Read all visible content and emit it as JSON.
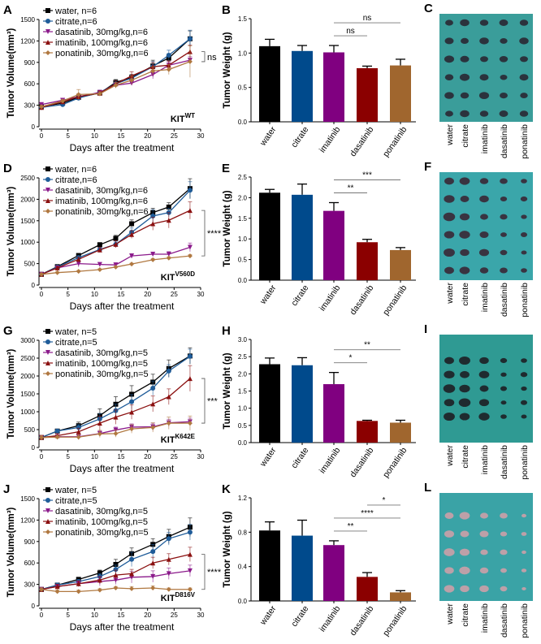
{
  "series_styles": {
    "water": {
      "color": "#000000",
      "marker": "square"
    },
    "citrate": {
      "color": "#1f5c99",
      "marker": "circle"
    },
    "dasatinib": {
      "color": "#8b1a8b",
      "marker": "triangle-down"
    },
    "imatinib": {
      "color": "#8b1010",
      "marker": "triangle-up"
    },
    "ponatinib": {
      "color": "#b07840",
      "marker": "diamond"
    }
  },
  "bar_colors": {
    "water": "#000000",
    "citrate": "#004a8c",
    "imatinib": "#800080",
    "dasatinib": "#8b0000",
    "ponatinib": "#a0662e"
  },
  "chart_data": [
    {
      "panel": "A",
      "type": "line",
      "xlabel": "Days after the treatment",
      "ylabel": "Tumor Volume(mm³)",
      "genotype": "KIT",
      "genotype_sup": "WT",
      "xlim": [
        0,
        30
      ],
      "ylim": [
        0,
        1500
      ],
      "xticks": [
        0,
        5,
        10,
        15,
        20,
        25,
        30
      ],
      "yticks": [
        0,
        300,
        600,
        900,
        1200,
        1500
      ],
      "legend": "top-left",
      "x": [
        0,
        4,
        7,
        11,
        14,
        17,
        21,
        24,
        28
      ],
      "series": [
        {
          "key": "water",
          "name": "water, n=6",
          "values": [
            280,
            330,
            410,
            470,
            620,
            690,
            850,
            960,
            1230
          ],
          "err": [
            20,
            20,
            30,
            30,
            40,
            40,
            80,
            60,
            110
          ]
        },
        {
          "key": "citrate",
          "name": "citrate,n=6",
          "values": [
            270,
            310,
            400,
            480,
            600,
            680,
            840,
            1000,
            1230
          ],
          "err": [
            20,
            20,
            30,
            30,
            40,
            40,
            70,
            70,
            120
          ]
        },
        {
          "key": "dasatinib",
          "name": "dasatinib, 30mg/kg,n=6",
          "values": [
            310,
            370,
            420,
            480,
            580,
            610,
            730,
            860,
            930
          ],
          "err": [
            20,
            20,
            30,
            30,
            30,
            30,
            60,
            50,
            50
          ]
        },
        {
          "key": "imatinib",
          "name": "imatinib, 100mg/kg,n=6",
          "values": [
            270,
            350,
            420,
            470,
            600,
            710,
            840,
            860,
            1050
          ],
          "err": [
            20,
            20,
            40,
            30,
            40,
            60,
            60,
            60,
            90
          ]
        },
        {
          "key": "ponatinib",
          "name": "ponatinib, 30mg/kg,n=6",
          "values": [
            280,
            360,
            450,
            460,
            580,
            650,
            780,
            800,
            910
          ],
          "err": [
            20,
            20,
            70,
            30,
            40,
            60,
            60,
            70,
            220
          ]
        }
      ],
      "significance": {
        "label": "ns",
        "groups": [
          "imatinib",
          "dasatinib",
          "ponatinib"
        ]
      }
    },
    {
      "panel": "B",
      "type": "bar",
      "ylabel": "Tumor Weight (g)",
      "ylim": [
        0,
        1.5
      ],
      "yticks": [
        "0.0",
        "0.5",
        "1.0",
        "1.5"
      ],
      "categories": [
        "water",
        "citrate",
        "imatinib",
        "dasatinib",
        "ponatinib"
      ],
      "values": [
        1.1,
        1.03,
        1.01,
        0.78,
        0.82
      ],
      "err": [
        0.1,
        0.08,
        0.1,
        0.03,
        0.09
      ],
      "comparisons": [
        {
          "from": "imatinib",
          "to": "dasatinib",
          "label": "ns"
        },
        {
          "from": "imatinib",
          "to": "ponatinib",
          "label": "ns"
        }
      ]
    },
    {
      "panel": "D",
      "type": "line",
      "xlabel": "Days after the treatment",
      "ylabel": "Tumor Volume(mm³)",
      "genotype": "KIT",
      "genotype_sup": "V560D",
      "xlim": [
        0,
        30
      ],
      "ylim": [
        0,
        2500
      ],
      "xticks": [
        0,
        5,
        10,
        15,
        20,
        25,
        30
      ],
      "yticks": [
        0,
        500,
        1000,
        1500,
        2000,
        2500
      ],
      "legend": "top-left",
      "x": [
        0,
        3,
        7,
        11,
        14,
        17,
        21,
        24,
        28
      ],
      "series": [
        {
          "key": "water",
          "name": "water, n=6",
          "values": [
            250,
            430,
            690,
            940,
            1090,
            1430,
            1690,
            1820,
            2250
          ],
          "err": [
            20,
            30,
            40,
            50,
            70,
            90,
            100,
            100,
            230
          ]
        },
        {
          "key": "citrate",
          "name": "citrate,n=6",
          "values": [
            250,
            420,
            640,
            830,
            950,
            1230,
            1610,
            1690,
            2210
          ],
          "err": [
            20,
            30,
            40,
            50,
            70,
            100,
            150,
            100,
            200
          ]
        },
        {
          "key": "dasatinib",
          "name": "dasatinib, 30mg/kg,n=6",
          "values": [
            250,
            400,
            500,
            480,
            470,
            680,
            720,
            720,
            880
          ],
          "err": [
            20,
            30,
            80,
            40,
            40,
            50,
            50,
            60,
            100
          ]
        },
        {
          "key": "imatinib",
          "name": "imatinib, 100mg/kg,n=6",
          "values": [
            250,
            400,
            600,
            820,
            950,
            1180,
            1430,
            1510,
            1740
          ],
          "err": [
            20,
            30,
            50,
            60,
            80,
            90,
            150,
            180,
            200
          ]
        },
        {
          "key": "ponatinib",
          "name": "ponatinib, 30mg/kg,n=6",
          "values": [
            250,
            290,
            320,
            360,
            420,
            490,
            590,
            630,
            680
          ],
          "err": [
            20,
            20,
            20,
            20,
            20,
            20,
            30,
            30,
            30
          ]
        }
      ],
      "significance": {
        "label": "****",
        "groups": [
          "imatinib",
          "ponatinib"
        ]
      }
    },
    {
      "panel": "E",
      "type": "bar",
      "ylabel": "Tumor Weight (g)",
      "ylim": [
        0,
        2.5
      ],
      "yticks": [
        "0.0",
        "0.5",
        "1.0",
        "1.5",
        "2.0",
        "2.5"
      ],
      "categories": [
        "water",
        "citrate",
        "imatinib",
        "dasatinib",
        "ponatinib"
      ],
      "values": [
        2.12,
        2.07,
        1.68,
        0.92,
        0.73
      ],
      "err": [
        0.08,
        0.26,
        0.2,
        0.07,
        0.06
      ],
      "comparisons": [
        {
          "from": "imatinib",
          "to": "dasatinib",
          "label": "**"
        },
        {
          "from": "imatinib",
          "to": "ponatinib",
          "label": "***"
        }
      ]
    },
    {
      "panel": "G",
      "type": "line",
      "xlabel": "Days after the treatment",
      "ylabel": "Tumor Volume(mm³)",
      "genotype": "KIT",
      "genotype_sup": "K642E",
      "xlim": [
        0,
        30
      ],
      "ylim": [
        0,
        3000
      ],
      "xticks": [
        0,
        5,
        10,
        15,
        20,
        25,
        30
      ],
      "yticks": [
        0,
        500,
        1000,
        1500,
        2000,
        2500,
        3000
      ],
      "legend": "top-left",
      "x": [
        0,
        3,
        7,
        11,
        14,
        17,
        21,
        24,
        28
      ],
      "series": [
        {
          "key": "water",
          "name": "water, n=5",
          "values": [
            280,
            460,
            610,
            890,
            1210,
            1490,
            1830,
            2210,
            2560
          ],
          "err": [
            60,
            50,
            100,
            190,
            210,
            240,
            220,
            240,
            230
          ]
        },
        {
          "key": "citrate",
          "name": "citrate,n=5",
          "values": [
            280,
            460,
            560,
            800,
            1030,
            1280,
            1660,
            2140,
            2550
          ],
          "err": [
            60,
            50,
            80,
            150,
            180,
            200,
            200,
            180,
            200
          ]
        },
        {
          "key": "dasatinib",
          "name": "dasatinib, 30mg/kg,n=5",
          "values": [
            280,
            300,
            300,
            390,
            490,
            570,
            580,
            690,
            720
          ],
          "err": [
            60,
            50,
            60,
            70,
            80,
            90,
            100,
            100,
            100
          ]
        },
        {
          "key": "imatinib",
          "name": "imatinib, 100mg/kg,n=5",
          "values": [
            280,
            330,
            440,
            680,
            850,
            990,
            1220,
            1420,
            1930
          ],
          "err": [
            60,
            60,
            100,
            200,
            200,
            200,
            220,
            220,
            360
          ]
        },
        {
          "key": "ponatinib",
          "name": "ponatinib, 30mg/kg,n=5",
          "values": [
            280,
            290,
            290,
            380,
            390,
            520,
            560,
            680,
            680
          ],
          "err": [
            60,
            50,
            70,
            100,
            100,
            120,
            130,
            170,
            200
          ]
        }
      ],
      "significance": {
        "label": "***",
        "groups": [
          "imatinib",
          "ponatinib"
        ]
      }
    },
    {
      "panel": "H",
      "type": "bar",
      "ylabel": "Tumor Weight (g)",
      "ylim": [
        0,
        3.0
      ],
      "yticks": [
        "0.0",
        "0.5",
        "1.0",
        "1.5",
        "2.0",
        "2.5",
        "3.0"
      ],
      "categories": [
        "water",
        "citrate",
        "imatinib",
        "dasatinib",
        "ponatinib"
      ],
      "values": [
        2.28,
        2.25,
        1.7,
        0.63,
        0.58
      ],
      "err": [
        0.18,
        0.22,
        0.34,
        0.02,
        0.07
      ],
      "comparisons": [
        {
          "from": "imatinib",
          "to": "dasatinib",
          "label": "*"
        },
        {
          "from": "imatinib",
          "to": "ponatinib",
          "label": "**"
        }
      ]
    },
    {
      "panel": "J",
      "type": "line",
      "xlabel": "Days after the treatment",
      "ylabel": "Tumor Volume(mm³)",
      "genotype": "KIT",
      "genotype_sup": "D816V",
      "xlim": [
        0,
        30
      ],
      "ylim": [
        0,
        1500
      ],
      "xticks": [
        0,
        5,
        10,
        15,
        20,
        25,
        30
      ],
      "yticks": [
        0,
        300,
        600,
        900,
        1200,
        1500
      ],
      "legend": "top-left",
      "x": [
        0,
        3,
        7,
        11,
        14,
        17,
        21,
        24,
        28
      ],
      "series": [
        {
          "key": "water",
          "name": "water, n=5",
          "values": [
            230,
            290,
            370,
            460,
            580,
            730,
            860,
            970,
            1100
          ],
          "err": [
            20,
            30,
            30,
            40,
            70,
            80,
            80,
            100,
            130
          ]
        },
        {
          "key": "citrate",
          "name": "citrate,n=5",
          "values": [
            230,
            290,
            340,
            410,
            510,
            650,
            760,
            940,
            1030
          ],
          "err": [
            20,
            30,
            30,
            40,
            60,
            100,
            100,
            90,
            110
          ]
        },
        {
          "key": "dasatinib",
          "name": "dasatinib, 30mg/kg,n=5",
          "values": [
            230,
            270,
            310,
            340,
            360,
            400,
            410,
            450,
            490
          ],
          "err": [
            20,
            30,
            40,
            60,
            60,
            80,
            80,
            80,
            80
          ]
        },
        {
          "key": "imatinib",
          "name": "imatinib, 100mg/kg,n=5",
          "values": [
            230,
            270,
            310,
            360,
            430,
            450,
            600,
            650,
            720
          ],
          "err": [
            20,
            30,
            40,
            50,
            70,
            60,
            80,
            80,
            100
          ]
        },
        {
          "key": "ponatinib",
          "name": "ponatinib, 30mg/kg,n=5",
          "values": [
            230,
            200,
            200,
            220,
            250,
            240,
            250,
            230,
            230
          ],
          "err": [
            20,
            20,
            20,
            20,
            20,
            30,
            30,
            20,
            20
          ]
        }
      ],
      "significance": {
        "label": "****",
        "groups": [
          "imatinib",
          "ponatinib"
        ]
      }
    },
    {
      "panel": "K",
      "type": "bar",
      "ylabel": "Tumor Weight (g)",
      "ylim": [
        0,
        1.2
      ],
      "yticks": [
        "0.0",
        "0.4",
        "0.8",
        "1.2"
      ],
      "categories": [
        "water",
        "citrate",
        "imatinib",
        "dasatinib",
        "ponatinib"
      ],
      "values": [
        0.82,
        0.76,
        0.65,
        0.28,
        0.1
      ],
      "err": [
        0.1,
        0.18,
        0.05,
        0.05,
        0.02
      ],
      "comparisons": [
        {
          "from": "imatinib",
          "to": "dasatinib",
          "label": "**"
        },
        {
          "from": "imatinib",
          "to": "ponatinib",
          "label": "****"
        },
        {
          "from": "dasatinib",
          "to": "ponatinib",
          "label": "*"
        }
      ]
    }
  ],
  "photos": [
    {
      "panel": "C",
      "labels": [
        "water",
        "citrate",
        "imatinib",
        "dasatinib",
        "ponatinib"
      ],
      "rows": 6
    },
    {
      "panel": "F",
      "labels": [
        "water",
        "citrate",
        "imatinib",
        "dasatinib",
        "ponatinib"
      ],
      "rows": 6
    },
    {
      "panel": "I",
      "labels": [
        "water",
        "citrate",
        "imatinib",
        "dasatinib",
        "ponatinib"
      ],
      "rows": 5
    },
    {
      "panel": "L",
      "labels": [
        "water",
        "citrate",
        "imatinib",
        "dasatinib",
        "ponatinib"
      ],
      "rows": 5
    }
  ]
}
